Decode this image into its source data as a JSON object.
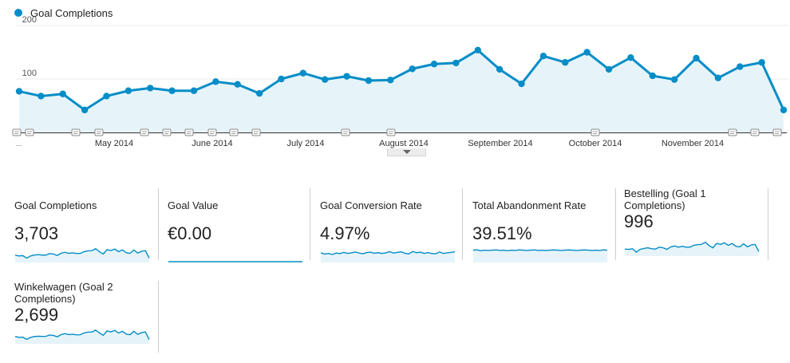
{
  "chart_data": {
    "type": "area",
    "series": [
      {
        "name": "Goal Completions",
        "values": [
          77,
          68,
          72,
          42,
          68,
          78,
          83,
          78,
          78,
          95,
          90,
          73,
          100,
          111,
          99,
          105,
          97,
          98,
          119,
          128,
          130,
          154,
          118,
          91,
          143,
          131,
          150,
          118,
          140,
          106,
          99,
          139,
          102,
          123,
          131,
          42
        ]
      }
    ],
    "ylim": [
      0,
      200
    ],
    "yticks": [
      100,
      200
    ],
    "x_tick_labels": [
      "May 2014",
      "June 2014",
      "July 2014",
      "August 2014",
      "September 2014",
      "October 2014",
      "November 2014"
    ],
    "x_first_label": "...",
    "grid": true,
    "legend": "top-left",
    "color": "#058dc7",
    "fill": "#e6f4fa"
  },
  "scorecards": [
    {
      "label": "Goal Completions",
      "value": "3,703",
      "spark": [
        77,
        68,
        72,
        42,
        68,
        78,
        83,
        78,
        78,
        95,
        90,
        73,
        100,
        111,
        99,
        105,
        97,
        98,
        119,
        128,
        130,
        154,
        118,
        91,
        143,
        131,
        150,
        118,
        140,
        106,
        99,
        139,
        102,
        123,
        131,
        42
      ],
      "spark_range": [
        0,
        170
      ]
    },
    {
      "label": "Goal Value",
      "value": "€0.00",
      "spark": [
        0,
        0,
        0,
        0,
        0,
        0,
        0,
        0,
        0,
        0,
        0,
        0,
        0,
        0,
        0,
        0,
        0,
        0,
        0,
        0,
        0,
        0,
        0,
        0,
        0,
        0,
        0,
        0,
        0,
        0,
        0,
        0,
        0,
        0,
        0,
        0
      ],
      "spark_range": [
        0,
        1
      ]
    },
    {
      "label": "Goal Conversion Rate",
      "value": "4.97%",
      "spark": [
        5.0,
        4.2,
        4.6,
        4.0,
        4.8,
        4.5,
        5.2,
        4.6,
        4.9,
        5.4,
        4.8,
        4.4,
        5.1,
        5.3,
        4.7,
        5.0,
        4.6,
        4.9,
        5.6,
        4.8,
        5.2,
        5.5,
        4.7,
        4.3,
        5.7,
        5.0,
        5.3,
        4.6,
        5.1,
        4.5,
        4.4,
        5.4,
        4.6,
        4.9,
        5.2,
        5.6
      ],
      "spark_range": [
        0,
        8
      ]
    },
    {
      "label": "Total Abandonment Rate",
      "value": "39.51%",
      "spark": [
        40,
        41,
        38,
        40,
        39,
        40,
        41,
        39,
        40,
        38,
        40,
        39,
        41,
        40,
        39,
        40,
        41,
        39,
        40,
        39,
        40,
        41,
        40,
        39,
        40,
        41,
        40,
        39,
        40,
        41,
        40,
        39,
        40,
        39,
        41,
        40
      ],
      "spark_range": [
        0,
        50
      ]
    },
    {
      "label": "Bestelling (Goal 1 Completions)",
      "value": "996",
      "spark": [
        20,
        19,
        21,
        10,
        19,
        22,
        24,
        21,
        20,
        26,
        24,
        19,
        27,
        30,
        26,
        29,
        26,
        26,
        32,
        34,
        35,
        42,
        31,
        24,
        38,
        35,
        40,
        32,
        38,
        29,
        27,
        37,
        27,
        33,
        35,
        12
      ],
      "spark_range": [
        0,
        46
      ]
    },
    {
      "label": "Winkelwagen (Goal 2 Completions)",
      "value": "2,699",
      "spark": [
        57,
        49,
        51,
        32,
        49,
        56,
        59,
        57,
        58,
        69,
        66,
        54,
        73,
        81,
        73,
        76,
        71,
        72,
        87,
        94,
        95,
        112,
        87,
        67,
        105,
        96,
        110,
        86,
        102,
        77,
        72,
        102,
        75,
        90,
        96,
        30
      ],
      "spark_range": [
        0,
        124
      ]
    }
  ]
}
